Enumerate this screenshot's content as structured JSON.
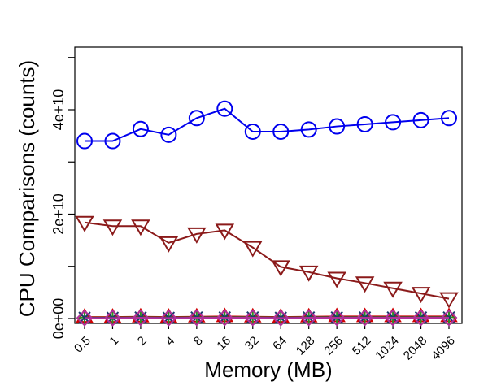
{
  "chart_data": {
    "type": "line",
    "xlabel": "Memory (MB)",
    "ylabel": "CPU Comparisons (counts)",
    "categories": [
      "0.5",
      "1",
      "2",
      "4",
      "8",
      "16",
      "32",
      "64",
      "128",
      "256",
      "512",
      "1024",
      "2048",
      "4096"
    ],
    "y_ticks": [
      0,
      20000000000,
      40000000000
    ],
    "y_tick_labels": [
      "0e+00",
      "2e+10",
      "4e+10"
    ],
    "ylim": [
      0,
      50000000000
    ],
    "grid": false,
    "legend": "none",
    "series": [
      {
        "marker": "circle",
        "color": "#0000ee",
        "values": [
          34000000000,
          34000000000,
          36300000000,
          35200000000,
          38400000000,
          40200000000,
          35800000000,
          35800000000,
          36200000000,
          36800000000,
          37200000000,
          37600000000,
          38000000000,
          38400000000
        ]
      },
      {
        "marker": "triangle-down",
        "color": "#8b1a1a",
        "values": [
          18400000000,
          17700000000,
          17700000000,
          14500000000,
          16200000000,
          16900000000,
          13600000000,
          9900000000,
          8900000000,
          7700000000,
          6800000000,
          5800000000,
          4800000000,
          3800000000
        ]
      },
      {
        "marker": "triangle-up",
        "color": "#d00000",
        "values": [
          300000000,
          300000000,
          350000000,
          300000000,
          350000000,
          400000000,
          350000000,
          300000000,
          350000000,
          400000000,
          400000000,
          400000000,
          400000000,
          400000000
        ]
      },
      {
        "marker": "plus",
        "color": "#2e8b22",
        "values": [
          200000000,
          200000000,
          250000000,
          200000000,
          250000000,
          250000000,
          250000000,
          200000000,
          250000000,
          250000000,
          250000000,
          250000000,
          250000000,
          250000000
        ]
      },
      {
        "marker": "cross",
        "color": "#1a3a6b",
        "values": [
          150000000,
          150000000,
          200000000,
          150000000,
          200000000,
          200000000,
          200000000,
          150000000,
          200000000,
          200000000,
          200000000,
          200000000,
          200000000,
          200000000
        ]
      },
      {
        "marker": "diamond",
        "color": "#b0309a",
        "values": [
          100000000,
          100000000,
          150000000,
          100000000,
          150000000,
          150000000,
          150000000,
          100000000,
          150000000,
          150000000,
          150000000,
          150000000,
          150000000,
          150000000
        ]
      }
    ]
  }
}
